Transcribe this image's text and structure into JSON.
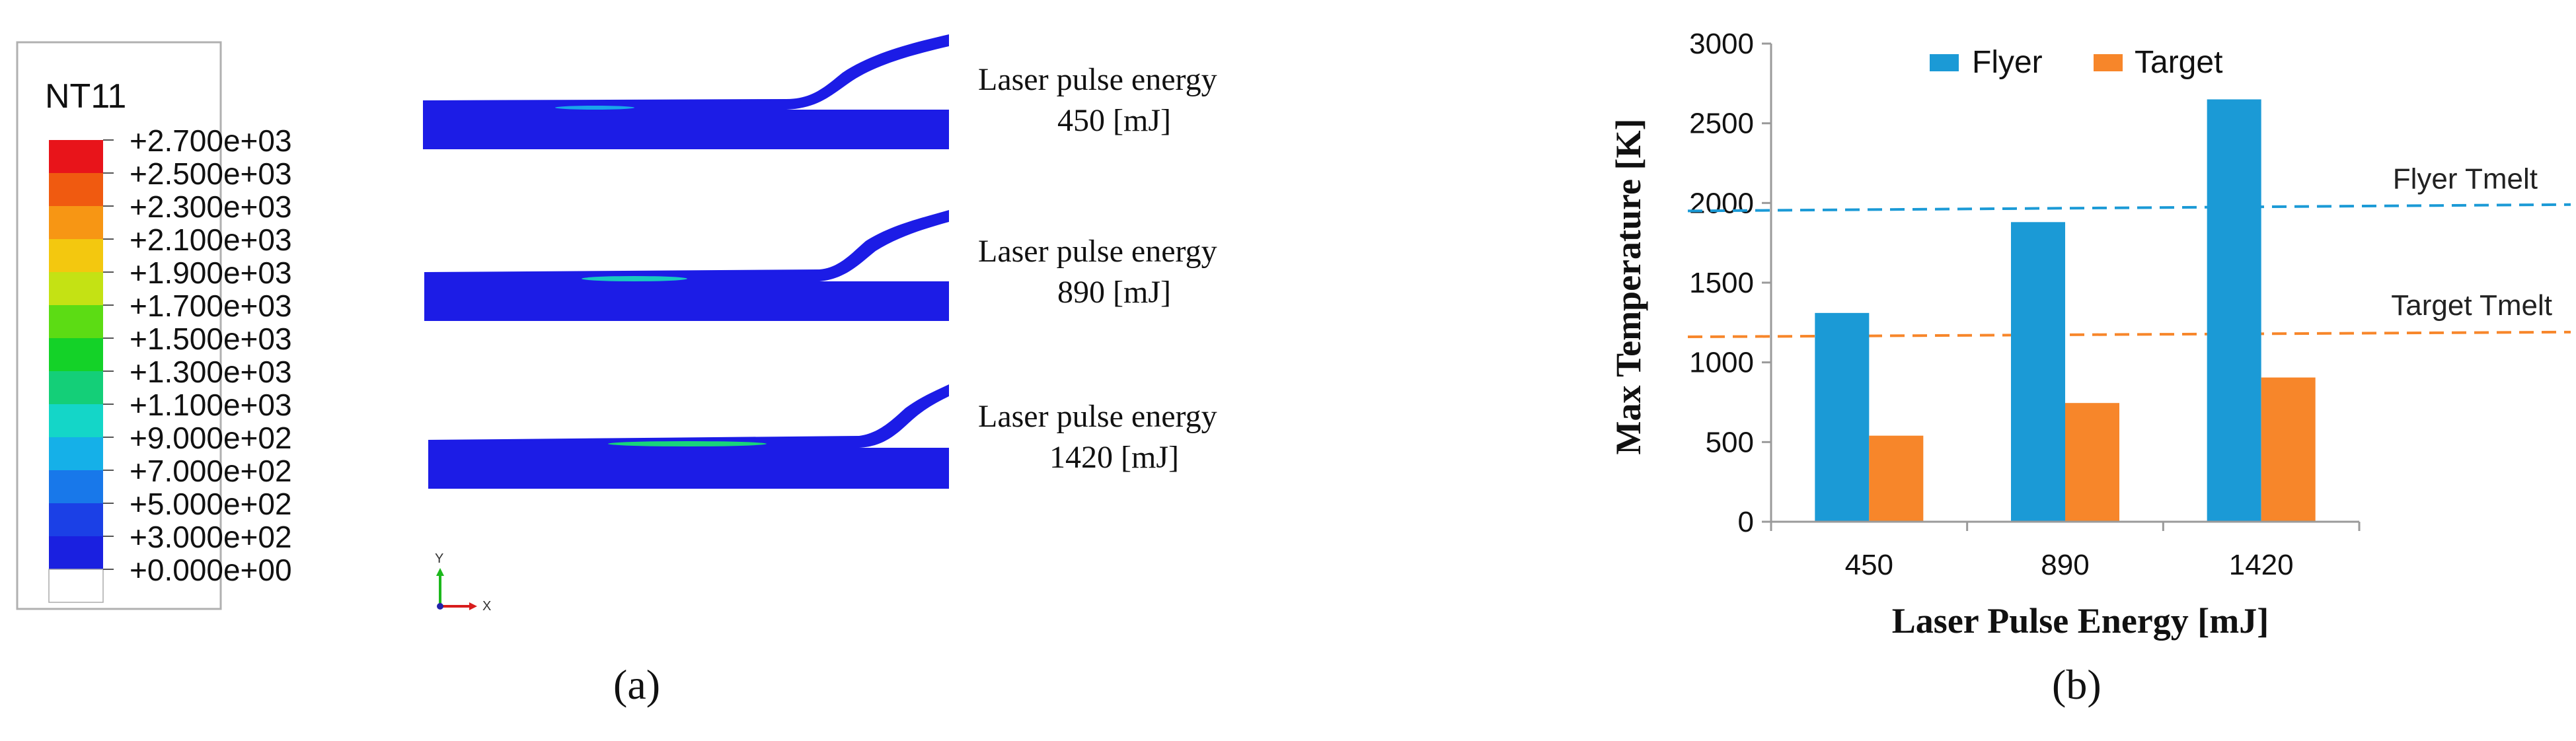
{
  "panel_a": {
    "caption": "(a)",
    "legend": {
      "title": "NT11",
      "entries": [
        "+2.700e+03",
        "+2.500e+03",
        "+2.300e+03",
        "+2.100e+03",
        "+1.900e+03",
        "+1.700e+03",
        "+1.500e+03",
        "+1.300e+03",
        "+1.100e+03",
        "+9.000e+02",
        "+7.000e+02",
        "+5.000e+02",
        "+3.000e+02",
        "+0.000e+00"
      ],
      "band_colors": [
        "#e8141a",
        "#f05a10",
        "#f79614",
        "#f3c80f",
        "#c4e214",
        "#5cdc14",
        "#14d228",
        "#14cf78",
        "#14d6c8",
        "#15b0e8",
        "#1878ea",
        "#1b40e6",
        "#1a20e0",
        "#ffffff"
      ]
    },
    "sim_labels": [
      {
        "line1": "Laser pulse energy",
        "line2": "450 [mJ]"
      },
      {
        "line1": "Laser pulse energy",
        "line2": "890 [mJ]"
      },
      {
        "line1": "Laser pulse energy",
        "line2": "1420 [mJ]"
      }
    ],
    "triad": {
      "y": "Y",
      "x": "X"
    }
  },
  "panel_b": {
    "caption": "(b)"
  },
  "chart_data": {
    "type": "bar",
    "categories": [
      "450",
      "890",
      "1420"
    ],
    "series": [
      {
        "name": "Flyer",
        "values": [
          1310,
          1880,
          2650
        ],
        "color": "#1b9ad6"
      },
      {
        "name": "Target",
        "values": [
          540,
          745,
          905
        ],
        "color": "#f7862a"
      }
    ],
    "xlabel": "Laser Pulse Energy [mJ]",
    "ylabel": "Max Temperature [K]",
    "ylim": [
      0,
      3000
    ],
    "yticks": [
      0,
      500,
      1000,
      1500,
      2000,
      2500,
      3000
    ],
    "grid": false,
    "legend_position": "top",
    "reference_lines": [
      {
        "label": "Flyer Tmelt",
        "y_start": 1950,
        "y_end": 1990,
        "color": "#1b9ad6"
      },
      {
        "label": "Target Tmelt",
        "y_start": 1160,
        "y_end": 1190,
        "color": "#f7862a"
      }
    ]
  }
}
